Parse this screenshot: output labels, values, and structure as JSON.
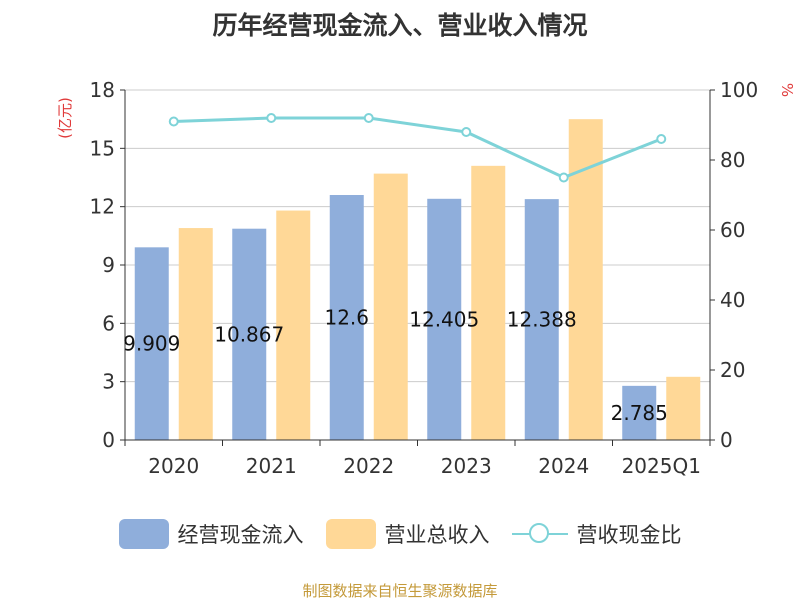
{
  "title": "历年经营现金流入、营业收入情况",
  "source": "制图数据来自恒生聚源数据库",
  "colors": {
    "cash": "#8faedb",
    "revenue": "#ffd897",
    "ratio": "#7ed3d8",
    "axis_unit": "#e03a3a",
    "text": "#333333"
  },
  "chart_data": {
    "type": "bar",
    "title": "历年经营现金流入、营业收入情况",
    "categories": [
      "2020",
      "2021",
      "2022",
      "2023",
      "2024",
      "2025Q1"
    ],
    "ylabel_left": "(亿元)",
    "ylabel_right": "%",
    "ylim_left": [
      0,
      18
    ],
    "yticks_left": [
      0,
      3,
      6,
      9,
      12,
      15,
      18
    ],
    "ylim_right": [
      0,
      100
    ],
    "yticks_right": [
      0,
      20,
      40,
      60,
      80,
      100
    ],
    "grid": true,
    "legend": "bottom",
    "series": [
      {
        "name": "经营现金流入",
        "type": "bar",
        "axis": "left",
        "values": [
          9.909,
          10.867,
          12.6,
          12.405,
          12.388,
          2.785
        ],
        "labels": [
          "9.909",
          "10.867",
          "12.6",
          "12.405",
          "12.388",
          "2.785"
        ]
      },
      {
        "name": "营业总收入",
        "type": "bar",
        "axis": "left",
        "values": [
          10.9,
          11.8,
          13.7,
          14.1,
          16.5,
          3.25
        ]
      },
      {
        "name": "营收现金比",
        "type": "line",
        "axis": "right",
        "values": [
          91,
          92,
          92,
          88,
          75,
          86
        ]
      }
    ]
  }
}
